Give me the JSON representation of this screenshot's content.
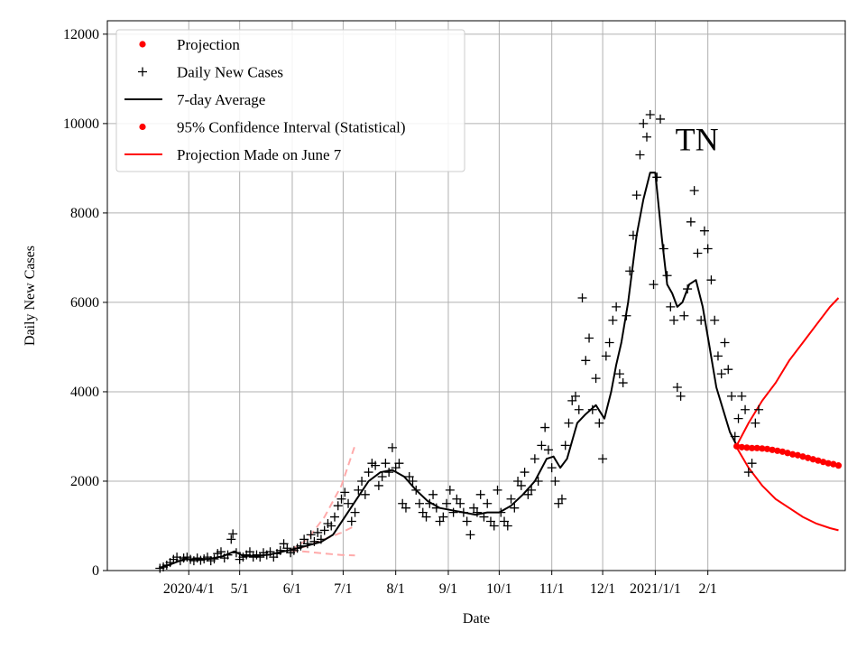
{
  "chart_data": {
    "type": "scatter",
    "title": "",
    "annotation": "TN",
    "xlabel": "Date",
    "ylabel": "Daily New Cases",
    "xlim": [
      -48,
      387
    ],
    "ylim": [
      0,
      12300
    ],
    "grid": true,
    "legend_position": "top-left",
    "x_unit": "days since 2020-03-01",
    "x_ticks": [
      {
        "label": "2020/4/1",
        "x": 0
      },
      {
        "label": "5/1",
        "x": 30
      },
      {
        "label": "6/1",
        "x": 61
      },
      {
        "label": "7/1",
        "x": 91
      },
      {
        "label": "8/1",
        "x": 122
      },
      {
        "label": "9/1",
        "x": 153
      },
      {
        "label": "10/1",
        "x": 183
      },
      {
        "label": "11/1",
        "x": 214
      },
      {
        "label": "12/1",
        "x": 244
      },
      {
        "label": "2021/1/1",
        "x": 275
      },
      {
        "label": "2/1",
        "x": 306
      }
    ],
    "y_ticks": [
      0,
      2000,
      4000,
      6000,
      8000,
      10000,
      12000
    ],
    "legend": [
      {
        "label": "Projection",
        "kind": "dot",
        "color": "#ff0000"
      },
      {
        "label": "Daily New Cases",
        "kind": "plus",
        "color": "#000000"
      },
      {
        "label": "7-day Average",
        "kind": "line",
        "color": "#000000"
      },
      {
        "label": "95% Confidence Interval (Statistical)",
        "kind": "dot",
        "color": "#ff0000"
      },
      {
        "label": "Projection Made on June 7",
        "kind": "line",
        "color": "#ff0000"
      }
    ],
    "series": [
      {
        "name": "Daily New Cases",
        "kind": "plus",
        "color": "#000000",
        "points": [
          [
            -17,
            50
          ],
          [
            -15,
            80
          ],
          [
            -13,
            120
          ],
          [
            -11,
            180
          ],
          [
            -9,
            250
          ],
          [
            -7,
            300
          ],
          [
            -5,
            220
          ],
          [
            -3,
            280
          ],
          [
            -1,
            300
          ],
          [
            1,
            250
          ],
          [
            3,
            220
          ],
          [
            5,
            280
          ],
          [
            7,
            230
          ],
          [
            9,
            260
          ],
          [
            11,
            300
          ],
          [
            13,
            220
          ],
          [
            15,
            260
          ],
          [
            17,
            380
          ],
          [
            19,
            420
          ],
          [
            21,
            280
          ],
          [
            23,
            350
          ],
          [
            25,
            700
          ],
          [
            26,
            820
          ],
          [
            28,
            400
          ],
          [
            30,
            250
          ],
          [
            32,
            300
          ],
          [
            34,
            350
          ],
          [
            36,
            420
          ],
          [
            38,
            300
          ],
          [
            40,
            350
          ],
          [
            42,
            300
          ],
          [
            44,
            400
          ],
          [
            46,
            350
          ],
          [
            48,
            420
          ],
          [
            50,
            300
          ],
          [
            52,
            380
          ],
          [
            54,
            450
          ],
          [
            56,
            600
          ],
          [
            58,
            500
          ],
          [
            60,
            400
          ],
          [
            62,
            450
          ],
          [
            64,
            500
          ],
          [
            66,
            550
          ],
          [
            68,
            700
          ],
          [
            70,
            600
          ],
          [
            72,
            800
          ],
          [
            74,
            650
          ],
          [
            76,
            850
          ],
          [
            78,
            700
          ],
          [
            80,
            900
          ],
          [
            82,
            1050
          ],
          [
            84,
            1000
          ],
          [
            86,
            1200
          ],
          [
            88,
            1450
          ],
          [
            90,
            1600
          ],
          [
            92,
            1750
          ],
          [
            94,
            1500
          ],
          [
            96,
            1100
          ],
          [
            98,
            1300
          ],
          [
            100,
            1800
          ],
          [
            102,
            2000
          ],
          [
            104,
            1700
          ],
          [
            106,
            2200
          ],
          [
            108,
            2400
          ],
          [
            110,
            2350
          ],
          [
            112,
            1900
          ],
          [
            114,
            2100
          ],
          [
            116,
            2400
          ],
          [
            118,
            2200
          ],
          [
            120,
            2750
          ],
          [
            122,
            2300
          ],
          [
            124,
            2400
          ],
          [
            126,
            1500
          ],
          [
            128,
            1400
          ],
          [
            130,
            2100
          ],
          [
            132,
            2000
          ],
          [
            134,
            1800
          ],
          [
            136,
            1500
          ],
          [
            138,
            1300
          ],
          [
            140,
            1200
          ],
          [
            142,
            1500
          ],
          [
            144,
            1700
          ],
          [
            146,
            1400
          ],
          [
            148,
            1100
          ],
          [
            150,
            1200
          ],
          [
            152,
            1500
          ],
          [
            154,
            1800
          ],
          [
            156,
            1300
          ],
          [
            158,
            1600
          ],
          [
            160,
            1500
          ],
          [
            162,
            1300
          ],
          [
            164,
            1100
          ],
          [
            166,
            800
          ],
          [
            168,
            1400
          ],
          [
            170,
            1300
          ],
          [
            172,
            1700
          ],
          [
            174,
            1200
          ],
          [
            176,
            1500
          ],
          [
            178,
            1100
          ],
          [
            180,
            1000
          ],
          [
            182,
            1800
          ],
          [
            184,
            1300
          ],
          [
            186,
            1100
          ],
          [
            188,
            1000
          ],
          [
            190,
            1600
          ],
          [
            192,
            1400
          ],
          [
            194,
            2000
          ],
          [
            196,
            1900
          ],
          [
            198,
            2200
          ],
          [
            200,
            1700
          ],
          [
            202,
            1800
          ],
          [
            204,
            2500
          ],
          [
            206,
            2000
          ],
          [
            208,
            2800
          ],
          [
            210,
            3200
          ],
          [
            212,
            2700
          ],
          [
            214,
            2300
          ],
          [
            216,
            2000
          ],
          [
            218,
            1500
          ],
          [
            220,
            1600
          ],
          [
            222,
            2800
          ],
          [
            224,
            3300
          ],
          [
            226,
            3800
          ],
          [
            228,
            3900
          ],
          [
            230,
            3600
          ],
          [
            232,
            6100
          ],
          [
            234,
            4700
          ],
          [
            236,
            5200
          ],
          [
            238,
            3600
          ],
          [
            240,
            4300
          ],
          [
            242,
            3300
          ],
          [
            244,
            2500
          ],
          [
            246,
            4800
          ],
          [
            248,
            5100
          ],
          [
            250,
            5600
          ],
          [
            252,
            5900
          ],
          [
            254,
            4400
          ],
          [
            256,
            4200
          ],
          [
            258,
            5700
          ],
          [
            260,
            6700
          ],
          [
            262,
            7500
          ],
          [
            264,
            8400
          ],
          [
            266,
            9300
          ],
          [
            268,
            10000
          ],
          [
            270,
            9700
          ],
          [
            272,
            10200
          ],
          [
            274,
            6400
          ],
          [
            276,
            8800
          ],
          [
            278,
            10100
          ],
          [
            280,
            7200
          ],
          [
            282,
            6600
          ],
          [
            284,
            5900
          ],
          [
            286,
            5600
          ],
          [
            288,
            4100
          ],
          [
            290,
            3900
          ],
          [
            292,
            5700
          ],
          [
            294,
            6300
          ],
          [
            296,
            7800
          ],
          [
            298,
            8500
          ],
          [
            300,
            7100
          ],
          [
            302,
            5600
          ],
          [
            304,
            7600
          ],
          [
            306,
            7200
          ],
          [
            308,
            6500
          ],
          [
            310,
            5600
          ],
          [
            312,
            4800
          ],
          [
            314,
            4400
          ],
          [
            316,
            5100
          ],
          [
            318,
            4500
          ],
          [
            320,
            3900
          ],
          [
            322,
            3000
          ],
          [
            324,
            3400
          ],
          [
            326,
            3900
          ],
          [
            328,
            3600
          ],
          [
            330,
            2200
          ],
          [
            332,
            2400
          ],
          [
            334,
            3300
          ],
          [
            336,
            3600
          ]
        ]
      },
      {
        "name": "7-day Average",
        "kind": "line",
        "color": "#000000",
        "points": [
          [
            -17,
            60
          ],
          [
            -10,
            150
          ],
          [
            -3,
            250
          ],
          [
            5,
            260
          ],
          [
            12,
            260
          ],
          [
            20,
            320
          ],
          [
            27,
            430
          ],
          [
            32,
            330
          ],
          [
            40,
            330
          ],
          [
            48,
            360
          ],
          [
            55,
            420
          ],
          [
            62,
            480
          ],
          [
            70,
            560
          ],
          [
            78,
            640
          ],
          [
            85,
            800
          ],
          [
            92,
            1200
          ],
          [
            99,
            1600
          ],
          [
            106,
            2000
          ],
          [
            113,
            2200
          ],
          [
            120,
            2250
          ],
          [
            127,
            2100
          ],
          [
            134,
            1800
          ],
          [
            141,
            1550
          ],
          [
            148,
            1400
          ],
          [
            155,
            1350
          ],
          [
            162,
            1300
          ],
          [
            169,
            1250
          ],
          [
            176,
            1300
          ],
          [
            183,
            1300
          ],
          [
            190,
            1450
          ],
          [
            197,
            1700
          ],
          [
            204,
            2000
          ],
          [
            211,
            2500
          ],
          [
            215,
            2550
          ],
          [
            219,
            2300
          ],
          [
            223,
            2500
          ],
          [
            229,
            3300
          ],
          [
            234,
            3500
          ],
          [
            240,
            3700
          ],
          [
            245,
            3400
          ],
          [
            249,
            4000
          ],
          [
            252,
            4600
          ],
          [
            255,
            5100
          ],
          [
            259,
            6000
          ],
          [
            264,
            7500
          ],
          [
            268,
            8300
          ],
          [
            272,
            8900
          ],
          [
            275,
            8900
          ],
          [
            279,
            7400
          ],
          [
            282,
            6400
          ],
          [
            285,
            6200
          ],
          [
            288,
            5900
          ],
          [
            291,
            6000
          ],
          [
            295,
            6400
          ],
          [
            299,
            6500
          ],
          [
            303,
            5900
          ],
          [
            307,
            5000
          ],
          [
            311,
            4100
          ],
          [
            315,
            3600
          ],
          [
            319,
            3100
          ],
          [
            323,
            2800
          ]
        ]
      },
      {
        "name": "Projection",
        "kind": "dot",
        "color": "#ff0000",
        "points": [
          [
            323,
            2780
          ],
          [
            326,
            2760
          ],
          [
            329,
            2750
          ],
          [
            332,
            2740
          ],
          [
            335,
            2740
          ],
          [
            338,
            2730
          ],
          [
            341,
            2720
          ],
          [
            344,
            2700
          ],
          [
            347,
            2680
          ],
          [
            350,
            2660
          ],
          [
            353,
            2630
          ],
          [
            356,
            2600
          ],
          [
            359,
            2580
          ],
          [
            362,
            2550
          ],
          [
            365,
            2520
          ],
          [
            368,
            2490
          ],
          [
            371,
            2460
          ],
          [
            374,
            2430
          ],
          [
            377,
            2400
          ],
          [
            380,
            2380
          ],
          [
            383,
            2350
          ]
        ]
      },
      {
        "name": "95% Confidence Interval (Statistical)",
        "kind": "line",
        "color": "#ff0000",
        "points_upper": [
          [
            323,
            2800
          ],
          [
            330,
            3300
          ],
          [
            338,
            3800
          ],
          [
            346,
            4200
          ],
          [
            354,
            4700
          ],
          [
            362,
            5100
          ],
          [
            370,
            5500
          ],
          [
            378,
            5900
          ],
          [
            383,
            6100
          ]
        ],
        "points_lower": [
          [
            323,
            2750
          ],
          [
            330,
            2300
          ],
          [
            338,
            1900
          ],
          [
            346,
            1600
          ],
          [
            354,
            1400
          ],
          [
            362,
            1200
          ],
          [
            370,
            1050
          ],
          [
            378,
            950
          ],
          [
            383,
            900
          ]
        ]
      },
      {
        "name": "Projection Made on June 7",
        "kind": "dashed",
        "color": "#ffaaaa",
        "points_upper": [
          [
            60,
            450
          ],
          [
            70,
            700
          ],
          [
            80,
            1200
          ],
          [
            90,
            1900
          ],
          [
            98,
            2800
          ]
        ],
        "points_mid": [
          [
            60,
            450
          ],
          [
            70,
            550
          ],
          [
            80,
            700
          ],
          [
            90,
            850
          ],
          [
            98,
            1000
          ]
        ],
        "points_lower": [
          [
            60,
            450
          ],
          [
            70,
            420
          ],
          [
            80,
            380
          ],
          [
            90,
            350
          ],
          [
            98,
            340
          ]
        ]
      }
    ]
  }
}
